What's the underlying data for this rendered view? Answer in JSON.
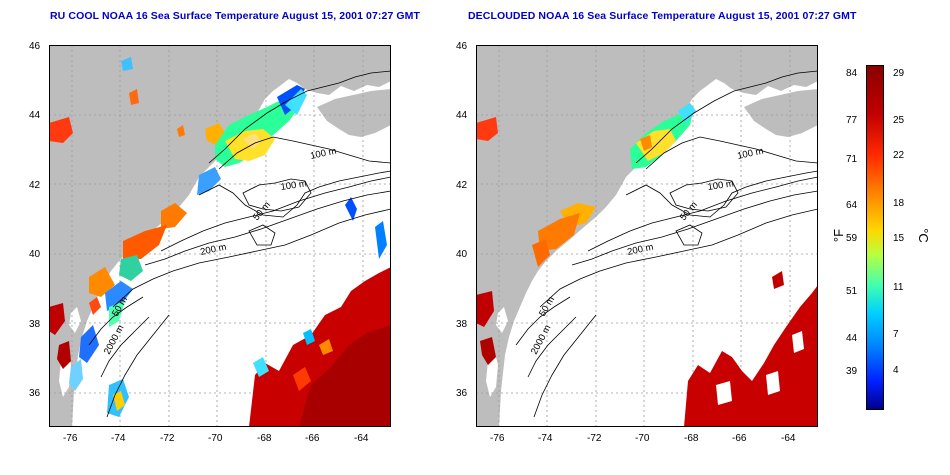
{
  "titles": {
    "left": "RU COOL NOAA 16 Sea Surface Temperature August 15, 2001 07:27 GMT",
    "right": "DECLOUDED NOAA 16 Sea Surface Temperature August 15, 2001 07:27 GMT"
  },
  "axes": {
    "lon_ticks": [
      "-76",
      "-74",
      "-72",
      "-70",
      "-68",
      "-66",
      "-64"
    ],
    "lat_ticks": [
      "36",
      "38",
      "40",
      "42",
      "44",
      "46"
    ],
    "lon_range": [
      -77.3,
      -63.0
    ],
    "lat_range": [
      35.0,
      46.0
    ]
  },
  "contours": {
    "left": [
      "100 m",
      "100 m",
      "50 m",
      "200 m",
      "50 m",
      "2000 m"
    ],
    "right": [
      "100 m",
      "100 m",
      "50 m",
      "200 m",
      "50 m",
      "2000 m"
    ]
  },
  "colorbar": {
    "fahrenheit_unit": "°F",
    "celsius_unit": "°C",
    "fahrenheit_ticks": [
      "84",
      "77",
      "71",
      "64",
      "59",
      "51",
      "44",
      "39"
    ],
    "celsius_ticks": [
      "29",
      "25",
      "22",
      "18",
      "15",
      "11",
      "7",
      "4"
    ],
    "range_celsius": [
      1,
      30
    ],
    "colors": [
      "#8b0000",
      "#ff2a00",
      "#ff8a00",
      "#ffd800",
      "#40ffb0",
      "#00d0ff",
      "#0020ff",
      "#00008b"
    ]
  },
  "colors": {
    "land": "#bdbdbd",
    "title_text": "#0000cc",
    "grid": "#9a9a9a"
  }
}
